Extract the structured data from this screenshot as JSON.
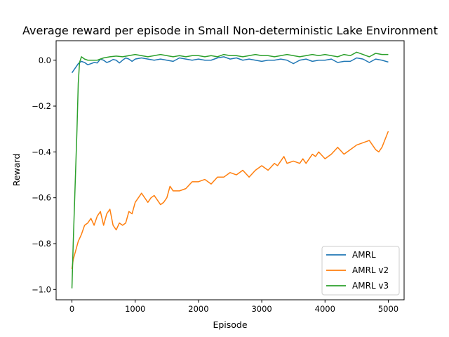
{
  "chart_data": {
    "type": "line",
    "title": "Average reward per episode in Small Non-deterministic Lake Environment",
    "xlabel": "Episode",
    "ylabel": "Reward",
    "xlim": [
      -250,
      5250
    ],
    "ylim": [
      -1.045,
      0.085
    ],
    "xticks": [
      0,
      1000,
      2000,
      3000,
      4000,
      5000
    ],
    "xtick_labels": [
      "0",
      "1000",
      "2000",
      "3000",
      "4000",
      "5000"
    ],
    "yticks": [
      0.0,
      -0.2,
      -0.4,
      -0.6,
      -0.8,
      -1.0
    ],
    "ytick_labels": [
      "0.0",
      "−0.2",
      "−0.4",
      "−0.6",
      "−0.8",
      "−1.0"
    ],
    "grid": false,
    "legend": "lower-right",
    "series": [
      {
        "name": "AMRL",
        "color": "#1f77b4",
        "x": [
          0,
          50,
          100,
          150,
          200,
          250,
          300,
          350,
          400,
          450,
          500,
          550,
          600,
          650,
          700,
          750,
          800,
          850,
          900,
          950,
          1000,
          1100,
          1200,
          1300,
          1400,
          1500,
          1600,
          1700,
          1800,
          1900,
          2000,
          2100,
          2200,
          2300,
          2400,
          2500,
          2600,
          2700,
          2800,
          2900,
          3000,
          3100,
          3200,
          3300,
          3400,
          3500,
          3600,
          3700,
          3800,
          3900,
          4000,
          4100,
          4200,
          4300,
          4400,
          4500,
          4600,
          4700,
          4800,
          4900,
          5000
        ],
        "values": [
          -0.055,
          -0.035,
          -0.015,
          -0.005,
          -0.01,
          -0.02,
          -0.015,
          -0.01,
          -0.012,
          0.005,
          0.0,
          -0.01,
          -0.005,
          0.003,
          0.0,
          -0.012,
          0.0,
          0.01,
          0.005,
          -0.005,
          0.005,
          0.01,
          0.005,
          0.0,
          0.005,
          0.0,
          -0.005,
          0.01,
          0.005,
          0.0,
          0.005,
          0.0,
          0.0,
          0.01,
          0.015,
          0.005,
          0.01,
          0.0,
          0.005,
          0.0,
          -0.005,
          0.0,
          0.0,
          0.005,
          0.0,
          -0.015,
          0.0,
          0.005,
          -0.005,
          0.0,
          0.0,
          0.005,
          -0.01,
          -0.005,
          -0.005,
          0.01,
          0.005,
          -0.01,
          0.005,
          0.0,
          -0.008
        ]
      },
      {
        "name": "AMRL v2",
        "color": "#ff7f0e",
        "x": [
          0,
          20,
          50,
          100,
          150,
          200,
          250,
          300,
          350,
          400,
          450,
          500,
          550,
          600,
          650,
          700,
          750,
          800,
          850,
          900,
          950,
          1000,
          1050,
          1100,
          1150,
          1200,
          1250,
          1300,
          1350,
          1400,
          1450,
          1500,
          1550,
          1600,
          1700,
          1800,
          1900,
          2000,
          2100,
          2200,
          2300,
          2400,
          2500,
          2600,
          2700,
          2800,
          2900,
          3000,
          3100,
          3200,
          3250,
          3300,
          3350,
          3400,
          3500,
          3600,
          3650,
          3700,
          3800,
          3850,
          3900,
          4000,
          4100,
          4200,
          4300,
          4400,
          4500,
          4600,
          4700,
          4800,
          4850,
          4900,
          5000
        ],
        "values": [
          -0.91,
          -0.87,
          -0.84,
          -0.79,
          -0.76,
          -0.72,
          -0.71,
          -0.69,
          -0.72,
          -0.68,
          -0.66,
          -0.72,
          -0.67,
          -0.65,
          -0.72,
          -0.74,
          -0.71,
          -0.72,
          -0.71,
          -0.66,
          -0.67,
          -0.62,
          -0.6,
          -0.58,
          -0.6,
          -0.62,
          -0.6,
          -0.59,
          -0.61,
          -0.63,
          -0.62,
          -0.6,
          -0.55,
          -0.57,
          -0.57,
          -0.56,
          -0.53,
          -0.53,
          -0.52,
          -0.54,
          -0.51,
          -0.51,
          -0.49,
          -0.5,
          -0.48,
          -0.51,
          -0.48,
          -0.46,
          -0.48,
          -0.45,
          -0.46,
          -0.44,
          -0.42,
          -0.45,
          -0.44,
          -0.45,
          -0.43,
          -0.45,
          -0.41,
          -0.42,
          -0.4,
          -0.43,
          -0.41,
          -0.38,
          -0.41,
          -0.39,
          -0.37,
          -0.36,
          -0.35,
          -0.39,
          -0.4,
          -0.38,
          -0.31
        ]
      },
      {
        "name": "AMRL v3",
        "color": "#2ca02c",
        "x": [
          0,
          20,
          50,
          80,
          100,
          120,
          150,
          200,
          250,
          300,
          400,
          500,
          600,
          700,
          800,
          900,
          1000,
          1100,
          1200,
          1300,
          1400,
          1500,
          1600,
          1700,
          1800,
          1900,
          2000,
          2100,
          2200,
          2300,
          2400,
          2500,
          2600,
          2700,
          2800,
          2900,
          3000,
          3100,
          3200,
          3300,
          3400,
          3500,
          3600,
          3700,
          3800,
          3900,
          4000,
          4100,
          4200,
          4300,
          4400,
          4500,
          4600,
          4700,
          4800,
          4900,
          5000
        ],
        "values": [
          -0.995,
          -0.8,
          -0.55,
          -0.3,
          -0.1,
          -0.01,
          0.015,
          0.005,
          0.0,
          0.0,
          0.0,
          0.01,
          0.015,
          0.018,
          0.015,
          0.02,
          0.025,
          0.02,
          0.015,
          0.02,
          0.025,
          0.02,
          0.015,
          0.02,
          0.015,
          0.02,
          0.02,
          0.015,
          0.02,
          0.015,
          0.025,
          0.02,
          0.02,
          0.015,
          0.02,
          0.025,
          0.02,
          0.02,
          0.015,
          0.02,
          0.025,
          0.02,
          0.015,
          0.02,
          0.025,
          0.02,
          0.025,
          0.02,
          0.015,
          0.025,
          0.02,
          0.035,
          0.025,
          0.015,
          0.03,
          0.025,
          0.025
        ]
      }
    ]
  }
}
